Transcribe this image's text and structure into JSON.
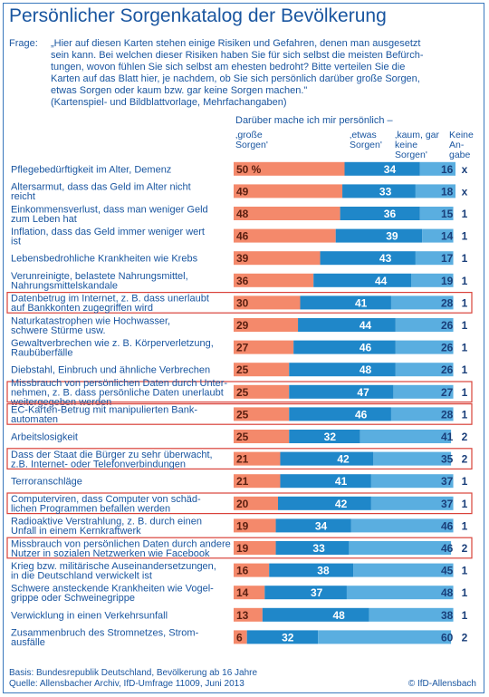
{
  "title": "Persönlicher Sorgenkatalog der Bevölkerung",
  "question_label": "Frage:",
  "question_text": "„Hier auf diesen Karten stehen einige Risiken und Gefahren, denen man ausgesetzt\nsein kann. Bei welchen dieser Risiken haben Sie für sich selbst die meisten Befürch-\ntungen, wovon fühlen Sie sich selbst am ehesten bedroht? Bitte verteilen Sie die\nKarten auf das Blatt hier, je nachdem, ob Sie sich persönlich darüber große Sorgen,\netwas Sorgen oder kaum bzw. gar keine Sorgen machen.\"\n(Kartenspiel- und Bildblattvorlage, Mehrfachangaben)",
  "legend_intro": "Darüber mache ich mir persönlich –",
  "headers": {
    "big": "‚große\nSorgen'",
    "some": "‚etwas\nSorgen'",
    "none": "‚kaum, gar\nkeine\nSorgen'",
    "na": "Keine\nAn-\ngabe"
  },
  "footer": "Basis: Bundesrepublik Deutschland, Bevölkerung ab 16 Jahre\nQuelle: Allensbacher Archiv, IfD-Umfrage 11009, Juni 2013",
  "credit": "© IfD-Allensbach",
  "colors": {
    "big": "#f4896b",
    "some": "#1f87c9",
    "none": "#5aaee0",
    "highlight_border": "#d9423a",
    "text": "#1a56a0"
  },
  "chart_data": {
    "type": "bar",
    "stacked": true,
    "orientation": "horizontal",
    "unit": "%",
    "series": [
      {
        "name": "‚große Sorgen'",
        "values": [
          50,
          49,
          48,
          46,
          39,
          36,
          30,
          29,
          27,
          25,
          25,
          25,
          25,
          21,
          21,
          20,
          19,
          19,
          16,
          14,
          13,
          6
        ]
      },
      {
        "name": "‚etwas Sorgen'",
        "values": [
          34,
          33,
          36,
          39,
          43,
          44,
          41,
          44,
          46,
          48,
          47,
          46,
          32,
          42,
          41,
          42,
          34,
          33,
          38,
          37,
          48,
          32
        ]
      },
      {
        "name": "‚kaum, gar keine Sorgen'",
        "values": [
          16,
          18,
          15,
          14,
          17,
          19,
          28,
          26,
          26,
          26,
          27,
          28,
          41,
          35,
          37,
          37,
          46,
          46,
          45,
          48,
          38,
          60
        ]
      },
      {
        "name": "Keine Angabe",
        "values": [
          "x",
          "x",
          1,
          1,
          1,
          1,
          1,
          1,
          1,
          1,
          1,
          1,
          2,
          2,
          1,
          1,
          1,
          2,
          1,
          1,
          1,
          2
        ]
      }
    ],
    "first_value_suffix": "%",
    "highlighted": [
      false,
      false,
      false,
      false,
      false,
      false,
      true,
      false,
      false,
      false,
      true,
      true,
      false,
      true,
      false,
      true,
      false,
      true,
      false,
      false,
      false,
      false
    ],
    "categories": [
      "Pflegebedürftigkeit im Alter, Demenz",
      "Altersarmut, dass das Geld im Alter nicht\nreicht",
      "Einkommensverlust, dass man weniger Geld\nzum Leben hat",
      "Inflation, dass das Geld immer weniger wert\nist",
      "Lebensbedrohliche Krankheiten wie Krebs",
      "Verunreinigte, belastete Nahrungsmittel,\nNahrungsmittelskandale",
      "Datenbetrug im Internet, z. B. dass unerlaubt\nauf Bankkonten zugegriffen wird",
      "Naturkatastrophen wie Hochwasser,\nschwere Stürme usw.",
      "Gewaltverbrechen wie z. B. Körperverletzung,\nRaubüberfälle",
      "Diebstahl, Einbruch und ähnliche Verbrechen",
      "Missbrauch von persönlichen Daten durch Unter-\nnehmen, z. B. dass persönliche Daten unerlaubt\nweitergegeben werden",
      "EC-Karten-Betrug mit manipulierten Bank-\nautomaten",
      "Arbeitslosigkeit",
      "Dass der Staat die Bürger zu sehr überwacht,\nz.B. Internet- oder Telefonverbindungen",
      "Terroranschläge",
      "Computerviren, dass Computer von schäd-\nlichen Programmen befallen werden",
      "Radioaktive Verstrahlung, z. B. durch einen\nUnfall in einem Kernkraftwerk",
      "Missbrauch von persönlichen Daten durch andere\nNutzer in sozialen Netzwerken wie Facebook",
      "Krieg bzw. militärische Auseinandersetzungen,\nin die Deutschland verwickelt ist",
      "Schwere ansteckende Krankheiten wie Vogel-\ngrippe oder Schweinegrippe",
      "Verwicklung in einen Verkehrsunfall",
      "Zusammenbruch des Stromnetzes, Strom-\nausfälle"
    ]
  }
}
